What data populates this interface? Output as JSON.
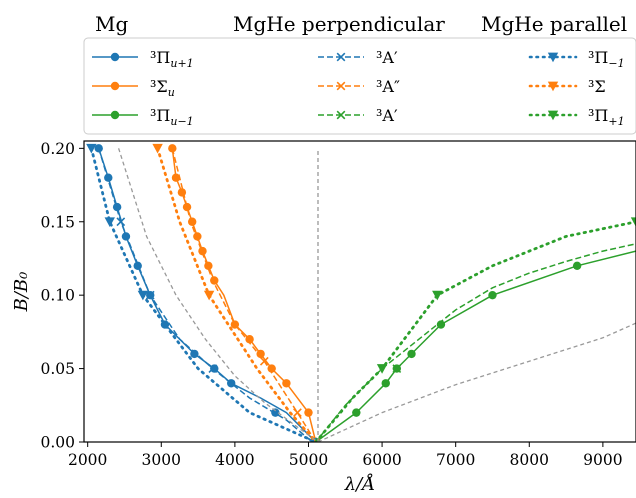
{
  "legend": {
    "headers": [
      "Mg",
      "MgHe perpendicular",
      "MgHe parallel"
    ],
    "columns": [
      [
        {
          "label": "³Π",
          "sub": "u+1",
          "color": "#1f77b4",
          "marker": "circle",
          "line": "solid"
        },
        {
          "label": "³Σ",
          "sub": "u",
          "color": "#ff7f0e",
          "marker": "circle",
          "line": "solid"
        },
        {
          "label": "³Π",
          "sub": "u−1",
          "color": "#2ca02c",
          "marker": "circle",
          "line": "solid"
        }
      ],
      [
        {
          "label": "³A′",
          "sub": "",
          "color": "#1f77b4",
          "marker": "x",
          "line": "dashed"
        },
        {
          "label": "³A″",
          "sub": "",
          "color": "#ff7f0e",
          "marker": "x",
          "line": "dashed"
        },
        {
          "label": "³A′",
          "sub": "",
          "color": "#2ca02c",
          "marker": "x",
          "line": "dashed"
        }
      ],
      [
        {
          "label": "³Π",
          "sub": "−1",
          "color": "#1f77b4",
          "marker": "triangle",
          "line": "dotted"
        },
        {
          "label": "³Σ",
          "sub": "",
          "color": "#ff7f0e",
          "marker": "triangle",
          "line": "dotted"
        },
        {
          "label": "³Π",
          "sub": "+1",
          "color": "#2ca02c",
          "marker": "triangle",
          "line": "dotted"
        }
      ]
    ]
  },
  "chart_data": {
    "type": "line",
    "xlabel": "λ/Å",
    "ylabel": "B/B₀",
    "xlim": [
      1950,
      9450
    ],
    "ylim": [
      0,
      0.205
    ],
    "xticks": [
      2000,
      3000,
      4000,
      5000,
      6000,
      7000,
      8000,
      9000
    ],
    "yticks": [
      "0.00",
      "0.05",
      "0.10",
      "0.15",
      "0.20"
    ],
    "grid": false,
    "series": [
      {
        "group": "Mg",
        "color": "#1f77b4",
        "line": "solid",
        "marker": "circle",
        "x": [
          2150,
          2280,
          2400,
          2520,
          2680,
          2850,
          3050,
          3450,
          3720,
          3950,
          4350,
          4700,
          5000,
          5100
        ],
        "y": [
          0.2,
          0.18,
          0.16,
          0.14,
          0.12,
          0.1,
          0.08,
          0.06,
          0.05,
          0.04,
          0.03,
          0.02,
          0.005,
          0.0
        ],
        "marker_x": [
          2150,
          2280,
          2400,
          2520,
          2680,
          2850,
          3050,
          3450,
          3720,
          3950,
          4550,
          5100
        ],
        "marker_y": [
          0.2,
          0.18,
          0.16,
          0.14,
          0.12,
          0.1,
          0.08,
          0.06,
          0.05,
          0.04,
          0.02,
          0.0
        ]
      },
      {
        "group": "Mg",
        "color": "#ff7f0e",
        "line": "solid",
        "marker": "circle",
        "x": [
          3150,
          3200,
          3280,
          3350,
          3420,
          3490,
          3560,
          3640,
          3720,
          3850,
          4000,
          4200,
          4350,
          4500,
          4700,
          5000,
          5100
        ],
        "y": [
          0.2,
          0.18,
          0.17,
          0.16,
          0.15,
          0.14,
          0.13,
          0.12,
          0.11,
          0.1,
          0.08,
          0.07,
          0.06,
          0.05,
          0.04,
          0.02,
          0.0
        ],
        "marker_x": [
          3150,
          3200,
          3280,
          3350,
          3420,
          3490,
          3560,
          3640,
          3720,
          4000,
          4200,
          4350,
          4500,
          4700,
          5000,
          5100
        ],
        "marker_y": [
          0.2,
          0.18,
          0.17,
          0.16,
          0.15,
          0.14,
          0.13,
          0.12,
          0.11,
          0.08,
          0.07,
          0.06,
          0.05,
          0.04,
          0.02,
          0.0
        ]
      },
      {
        "group": "Mg",
        "color": "#2ca02c",
        "line": "solid",
        "marker": "circle",
        "x": [
          5100,
          5650,
          6050,
          6200,
          6400,
          6800,
          7500,
          8650,
          9450
        ],
        "y": [
          0.0,
          0.02,
          0.04,
          0.05,
          0.06,
          0.08,
          0.1,
          0.12,
          0.13
        ],
        "marker_x": [
          5100,
          5650,
          6050,
          6200,
          6400,
          6800,
          7500,
          8650
        ],
        "marker_y": [
          0.0,
          0.02,
          0.04,
          0.05,
          0.06,
          0.08,
          0.1,
          0.12
        ]
      },
      {
        "group": "MgHe perpendicular",
        "color": "#1f77b4",
        "line": "dashed",
        "marker": "x",
        "x": [
          2150,
          2450,
          2850,
          3250,
          3700,
          4200,
          4700,
          5050
        ],
        "y": [
          0.2,
          0.15,
          0.1,
          0.07,
          0.05,
          0.03,
          0.015,
          0.0
        ],
        "marker_x": [
          2450,
          2850,
          3700,
          5050
        ],
        "marker_y": [
          0.15,
          0.1,
          0.05,
          0.0
        ]
      },
      {
        "group": "MgHe perpendicular",
        "color": "#ff7f0e",
        "line": "dashed",
        "marker": "x",
        "x": [
          3150,
          3400,
          3700,
          4000,
          4400,
          4850,
          5100
        ],
        "y": [
          0.2,
          0.15,
          0.11,
          0.08,
          0.055,
          0.02,
          0.0
        ],
        "marker_x": [
          4400,
          4850,
          5100
        ],
        "marker_y": [
          0.055,
          0.02,
          0.0
        ]
      },
      {
        "group": "MgHe perpendicular",
        "color": "#2ca02c",
        "line": "dashed",
        "marker": "x",
        "x": [
          5100,
          5500,
          6000,
          6500,
          7000,
          7500,
          8000,
          8500,
          9000,
          9450
        ],
        "y": [
          0.0,
          0.025,
          0.05,
          0.07,
          0.09,
          0.105,
          0.115,
          0.123,
          0.13,
          0.135
        ],
        "marker_x": [
          6200
        ],
        "marker_y": [
          0.05
        ]
      },
      {
        "group": "MgHe parallel",
        "color": "#1f77b4",
        "line": "dotted",
        "marker": "triangle",
        "x": [
          2050,
          2300,
          2750,
          3500,
          4200,
          5100
        ],
        "y": [
          0.2,
          0.15,
          0.1,
          0.05,
          0.02,
          0.0
        ],
        "marker_x": [
          2050,
          2300,
          2750
        ],
        "marker_y": [
          0.2,
          0.15,
          0.1
        ]
      },
      {
        "group": "MgHe parallel",
        "color": "#ff7f0e",
        "line": "dotted",
        "marker": "triangle",
        "x": [
          2950,
          3250,
          3650,
          4300,
          4750,
          5100
        ],
        "y": [
          0.2,
          0.15,
          0.1,
          0.05,
          0.02,
          0.0
        ],
        "marker_x": [
          2950,
          3650
        ],
        "marker_y": [
          0.2,
          0.1
        ]
      },
      {
        "group": "MgHe parallel",
        "color": "#2ca02c",
        "line": "dotted",
        "marker": "triangle",
        "x": [
          5100,
          5600,
          6000,
          6750,
          7500,
          8500,
          9450
        ],
        "y": [
          0.0,
          0.03,
          0.05,
          0.1,
          0.12,
          0.14,
          0.15
        ],
        "marker_x": [
          6000,
          6750,
          9450
        ],
        "marker_y": [
          0.05,
          0.1,
          0.15
        ]
      },
      {
        "group": "reference",
        "color": "#999999",
        "line": "dashed",
        "marker": "none",
        "x": [
          2420,
          2800,
          3200,
          3600,
          4000,
          4400,
          4800,
          5130
        ],
        "y": [
          0.2,
          0.14,
          0.1,
          0.07,
          0.045,
          0.027,
          0.012,
          0.0
        ],
        "marker_x": [],
        "marker_y": []
      },
      {
        "group": "reference",
        "color": "#999999",
        "line": "dashed",
        "marker": "none",
        "x": [
          5130,
          6000,
          7000,
          8000,
          9000,
          9450
        ],
        "y": [
          0.0,
          0.02,
          0.039,
          0.055,
          0.071,
          0.081
        ],
        "marker_x": [],
        "marker_y": []
      },
      {
        "group": "reference",
        "color": "#999999",
        "line": "dashed",
        "marker": "none",
        "x": [
          5130,
          5130
        ],
        "y": [
          0.0,
          0.2
        ],
        "marker_x": [],
        "marker_y": []
      }
    ]
  }
}
